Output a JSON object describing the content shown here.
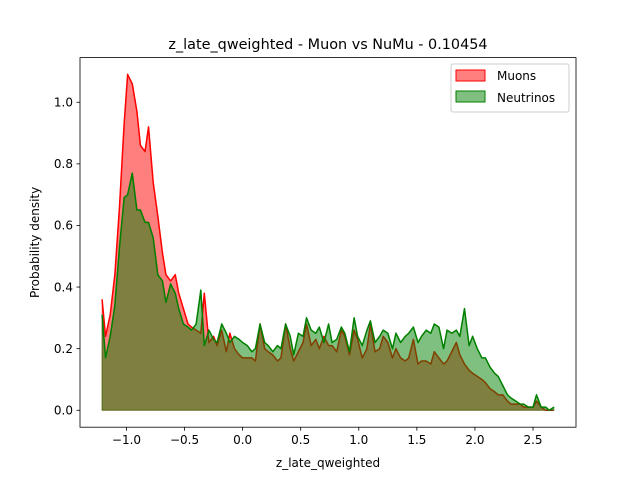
{
  "chart_data": {
    "type": "area",
    "title": "z_late_qweighted - Muon vs NuMu - 0.10454",
    "xlabel": "z_late_qweighted",
    "ylabel": "Probability density",
    "xlim": [
      -1.4,
      2.87
    ],
    "ylim": [
      -0.055,
      1.145
    ],
    "xticks": [
      -1.0,
      -0.5,
      0.0,
      0.5,
      1.0,
      1.5,
      2.0,
      2.5
    ],
    "xtick_labels": [
      "−1.0",
      "−0.5",
      "0.0",
      "0.5",
      "1.0",
      "1.5",
      "2.0",
      "2.5"
    ],
    "yticks": [
      0.0,
      0.2,
      0.4,
      0.6,
      0.8,
      1.0
    ],
    "ytick_labels": [
      "0.0",
      "0.2",
      "0.4",
      "0.6",
      "0.8",
      "1.0"
    ],
    "legend_position": "top-right",
    "grid": false,
    "series": [
      {
        "name": "Muons",
        "line_color": "#ff0000",
        "fill_color": "#ff0000",
        "fill_opacity": 0.5,
        "points": [
          [
            -1.21,
            0.36
          ],
          [
            -1.18,
            0.24
          ],
          [
            -1.14,
            0.31
          ],
          [
            -1.1,
            0.44
          ],
          [
            -1.06,
            0.66
          ],
          [
            -1.02,
            0.93
          ],
          [
            -0.99,
            1.09
          ],
          [
            -0.95,
            1.06
          ],
          [
            -0.91,
            0.97
          ],
          [
            -0.88,
            0.86
          ],
          [
            -0.84,
            0.84
          ],
          [
            -0.81,
            0.92
          ],
          [
            -0.77,
            0.74
          ],
          [
            -0.73,
            0.63
          ],
          [
            -0.69,
            0.51
          ],
          [
            -0.66,
            0.44
          ],
          [
            -0.62,
            0.42
          ],
          [
            -0.58,
            0.44
          ],
          [
            -0.55,
            0.38
          ],
          [
            -0.51,
            0.33
          ],
          [
            -0.47,
            0.28
          ],
          [
            -0.44,
            0.27
          ],
          [
            -0.4,
            0.26
          ],
          [
            -0.36,
            0.25
          ],
          [
            -0.33,
            0.38
          ],
          [
            -0.29,
            0.22
          ],
          [
            -0.25,
            0.24
          ],
          [
            -0.22,
            0.21
          ],
          [
            -0.18,
            0.26
          ],
          [
            -0.14,
            0.19
          ],
          [
            -0.11,
            0.25
          ],
          [
            -0.07,
            0.2
          ],
          [
            -0.03,
            0.18
          ],
          [
            0.0,
            0.17
          ],
          [
            0.04,
            0.17
          ],
          [
            0.08,
            0.17
          ],
          [
            0.11,
            0.16
          ],
          [
            0.15,
            0.28
          ],
          [
            0.19,
            0.2
          ],
          [
            0.22,
            0.19
          ],
          [
            0.26,
            0.18
          ],
          [
            0.3,
            0.16
          ],
          [
            0.33,
            0.17
          ],
          [
            0.37,
            0.28
          ],
          [
            0.41,
            0.2
          ],
          [
            0.44,
            0.16
          ],
          [
            0.48,
            0.19
          ],
          [
            0.52,
            0.22
          ],
          [
            0.55,
            0.28
          ],
          [
            0.59,
            0.21
          ],
          [
            0.63,
            0.23
          ],
          [
            0.66,
            0.2
          ],
          [
            0.7,
            0.24
          ],
          [
            0.74,
            0.21
          ],
          [
            0.77,
            0.21
          ],
          [
            0.81,
            0.19
          ],
          [
            0.85,
            0.26
          ],
          [
            0.88,
            0.24
          ],
          [
            0.92,
            0.18
          ],
          [
            0.96,
            0.26
          ],
          [
            0.99,
            0.23
          ],
          [
            1.03,
            0.17
          ],
          [
            1.07,
            0.2
          ],
          [
            1.1,
            0.28
          ],
          [
            1.14,
            0.19
          ],
          [
            1.18,
            0.2
          ],
          [
            1.21,
            0.24
          ],
          [
            1.25,
            0.22
          ],
          [
            1.29,
            0.17
          ],
          [
            1.32,
            0.2
          ],
          [
            1.36,
            0.17
          ],
          [
            1.4,
            0.16
          ],
          [
            1.43,
            0.17
          ],
          [
            1.47,
            0.23
          ],
          [
            1.51,
            0.15
          ],
          [
            1.54,
            0.16
          ],
          [
            1.58,
            0.16
          ],
          [
            1.62,
            0.15
          ],
          [
            1.65,
            0.19
          ],
          [
            1.69,
            0.17
          ],
          [
            1.73,
            0.15
          ],
          [
            1.76,
            0.16
          ],
          [
            1.8,
            0.19
          ],
          [
            1.84,
            0.22
          ],
          [
            1.87,
            0.18
          ],
          [
            1.91,
            0.15
          ],
          [
            1.95,
            0.13
          ],
          [
            1.98,
            0.12
          ],
          [
            2.02,
            0.11
          ],
          [
            2.06,
            0.1
          ],
          [
            2.09,
            0.09
          ],
          [
            2.13,
            0.07
          ],
          [
            2.17,
            0.06
          ],
          [
            2.2,
            0.05
          ],
          [
            2.24,
            0.05
          ],
          [
            2.28,
            0.03
          ],
          [
            2.31,
            0.02
          ],
          [
            2.35,
            0.02
          ],
          [
            2.39,
            0.02
          ],
          [
            2.42,
            0.01
          ],
          [
            2.46,
            0.01
          ],
          [
            2.5,
            0.01
          ],
          [
            2.53,
            0.03
          ],
          [
            2.57,
            0.01
          ],
          [
            2.61,
            0.0
          ],
          [
            2.64,
            0.0
          ],
          [
            2.68,
            0.0
          ]
        ]
      },
      {
        "name": "Neutrinos",
        "line_color": "#008000",
        "fill_color": "#008000",
        "fill_opacity": 0.5,
        "points": [
          [
            -1.21,
            0.31
          ],
          [
            -1.18,
            0.17
          ],
          [
            -1.14,
            0.24
          ],
          [
            -1.1,
            0.34
          ],
          [
            -1.06,
            0.53
          ],
          [
            -1.02,
            0.69
          ],
          [
            -0.99,
            0.7
          ],
          [
            -0.95,
            0.77
          ],
          [
            -0.91,
            0.65
          ],
          [
            -0.88,
            0.65
          ],
          [
            -0.84,
            0.61
          ],
          [
            -0.81,
            0.61
          ],
          [
            -0.77,
            0.56
          ],
          [
            -0.73,
            0.44
          ],
          [
            -0.69,
            0.42
          ],
          [
            -0.66,
            0.35
          ],
          [
            -0.62,
            0.41
          ],
          [
            -0.58,
            0.38
          ],
          [
            -0.55,
            0.33
          ],
          [
            -0.51,
            0.28
          ],
          [
            -0.47,
            0.27
          ],
          [
            -0.44,
            0.26
          ],
          [
            -0.4,
            0.28
          ],
          [
            -0.36,
            0.39
          ],
          [
            -0.33,
            0.21
          ],
          [
            -0.29,
            0.26
          ],
          [
            -0.25,
            0.23
          ],
          [
            -0.22,
            0.22
          ],
          [
            -0.18,
            0.28
          ],
          [
            -0.14,
            0.25
          ],
          [
            -0.11,
            0.22
          ],
          [
            -0.07,
            0.24
          ],
          [
            -0.03,
            0.23
          ],
          [
            0.0,
            0.22
          ],
          [
            0.04,
            0.21
          ],
          [
            0.08,
            0.19
          ],
          [
            0.11,
            0.2
          ],
          [
            0.15,
            0.28
          ],
          [
            0.19,
            0.22
          ],
          [
            0.22,
            0.21
          ],
          [
            0.26,
            0.19
          ],
          [
            0.3,
            0.21
          ],
          [
            0.33,
            0.2
          ],
          [
            0.37,
            0.28
          ],
          [
            0.41,
            0.24
          ],
          [
            0.44,
            0.18
          ],
          [
            0.48,
            0.25
          ],
          [
            0.52,
            0.24
          ],
          [
            0.55,
            0.3
          ],
          [
            0.59,
            0.26
          ],
          [
            0.63,
            0.25
          ],
          [
            0.66,
            0.27
          ],
          [
            0.7,
            0.22
          ],
          [
            0.74,
            0.28
          ],
          [
            0.77,
            0.22
          ],
          [
            0.81,
            0.23
          ],
          [
            0.85,
            0.27
          ],
          [
            0.88,
            0.25
          ],
          [
            0.92,
            0.19
          ],
          [
            0.96,
            0.3
          ],
          [
            0.99,
            0.24
          ],
          [
            1.03,
            0.21
          ],
          [
            1.07,
            0.26
          ],
          [
            1.1,
            0.29
          ],
          [
            1.14,
            0.22
          ],
          [
            1.18,
            0.24
          ],
          [
            1.21,
            0.26
          ],
          [
            1.25,
            0.25
          ],
          [
            1.29,
            0.2
          ],
          [
            1.32,
            0.25
          ],
          [
            1.36,
            0.22
          ],
          [
            1.4,
            0.24
          ],
          [
            1.43,
            0.25
          ],
          [
            1.47,
            0.27
          ],
          [
            1.51,
            0.22
          ],
          [
            1.54,
            0.24
          ],
          [
            1.58,
            0.26
          ],
          [
            1.62,
            0.25
          ],
          [
            1.65,
            0.28
          ],
          [
            1.69,
            0.27
          ],
          [
            1.73,
            0.2
          ],
          [
            1.76,
            0.26
          ],
          [
            1.8,
            0.25
          ],
          [
            1.84,
            0.26
          ],
          [
            1.87,
            0.24
          ],
          [
            1.91,
            0.33
          ],
          [
            1.95,
            0.21
          ],
          [
            1.98,
            0.24
          ],
          [
            2.02,
            0.2
          ],
          [
            2.06,
            0.17
          ],
          [
            2.09,
            0.17
          ],
          [
            2.13,
            0.14
          ],
          [
            2.17,
            0.12
          ],
          [
            2.2,
            0.11
          ],
          [
            2.24,
            0.08
          ],
          [
            2.28,
            0.05
          ],
          [
            2.31,
            0.04
          ],
          [
            2.35,
            0.03
          ],
          [
            2.39,
            0.02
          ],
          [
            2.42,
            0.02
          ],
          [
            2.46,
            0.01
          ],
          [
            2.5,
            0.01
          ],
          [
            2.53,
            0.05
          ],
          [
            2.57,
            0.01
          ],
          [
            2.61,
            0.01
          ],
          [
            2.64,
            0.0
          ],
          [
            2.68,
            0.01
          ]
        ]
      }
    ]
  }
}
